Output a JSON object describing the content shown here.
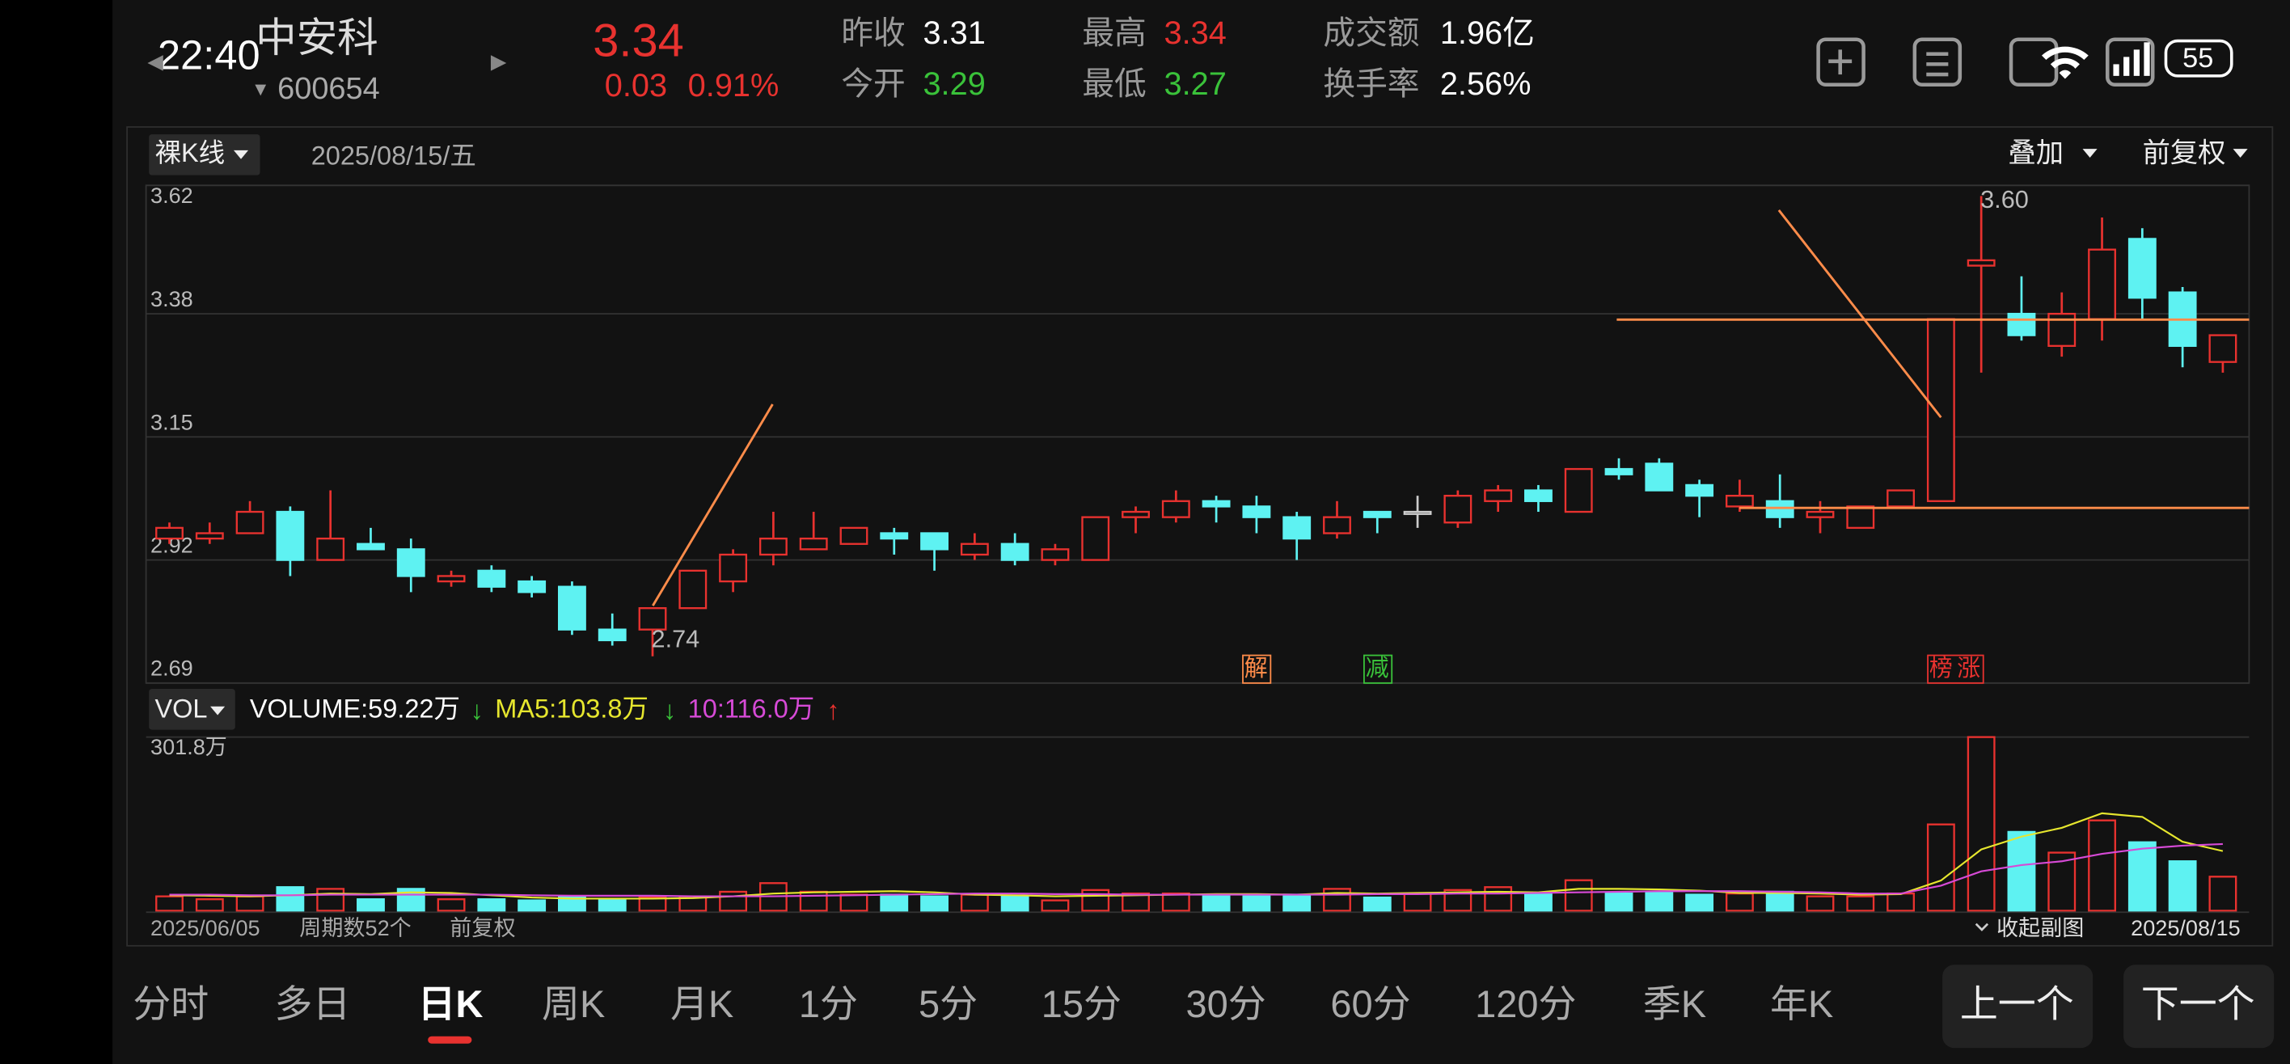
{
  "status_bar": {
    "time": "22:40",
    "battery": "55"
  },
  "header": {
    "name": "中安科",
    "code": "600654",
    "price": "3.34",
    "change": "0.03",
    "change_pct": "0.91%",
    "stats": [
      {
        "label": "昨收",
        "value": "3.31"
      },
      {
        "label": "今开",
        "value": "3.29"
      },
      {
        "label": "最高",
        "value": "3.34"
      },
      {
        "label": "最低",
        "value": "3.27"
      },
      {
        "label": "成交额",
        "value": "1.96亿"
      },
      {
        "label": "换手率",
        "value": "2.56%"
      }
    ]
  },
  "chart_toolbar": {
    "mode": "裸K线",
    "date": "2025/08/15/五",
    "overlay": "叠加",
    "adjust": "前复权"
  },
  "chart_data": [
    {
      "type": "candlestick",
      "open": [
        2.96,
        2.96,
        2.97,
        3.01,
        2.92,
        2.95,
        2.94,
        2.88,
        2.9,
        2.88,
        2.87,
        2.79,
        2.79,
        2.83,
        2.88,
        2.93,
        2.94,
        2.95,
        2.97,
        2.97,
        2.93,
        2.95,
        2.92,
        2.92,
        3.0,
        3.0,
        3.03,
        3.02,
        3.0,
        2.97,
        3.01,
        3.01,
        2.99,
        3.03,
        3.05,
        3.01,
        3.09,
        3.1,
        3.06,
        3.02,
        3.03,
        3.0,
        2.98,
        3.02,
        3.03,
        3.47,
        3.38,
        3.32,
        3.37,
        3.52,
        3.42,
        3.29
      ],
      "high": [
        2.99,
        2.99,
        3.03,
        3.02,
        3.05,
        2.98,
        2.96,
        2.9,
        2.91,
        2.89,
        2.88,
        2.82,
        2.83,
        2.9,
        2.94,
        3.01,
        3.01,
        2.98,
        2.98,
        2.97,
        2.97,
        2.97,
        2.95,
        3.0,
        3.02,
        3.05,
        3.04,
        3.04,
        3.01,
        3.03,
        3.01,
        3.04,
        3.05,
        3.06,
        3.06,
        3.09,
        3.11,
        3.11,
        3.07,
        3.07,
        3.08,
        3.03,
        3.02,
        3.05,
        3.37,
        3.6,
        3.45,
        3.42,
        3.56,
        3.54,
        3.43,
        3.34
      ],
      "low": [
        2.95,
        2.95,
        2.97,
        2.89,
        2.92,
        2.94,
        2.86,
        2.87,
        2.86,
        2.85,
        2.78,
        2.76,
        2.74,
        2.83,
        2.86,
        2.91,
        2.94,
        2.95,
        2.93,
        2.9,
        2.92,
        2.91,
        2.91,
        2.92,
        2.97,
        2.99,
        2.99,
        2.97,
        2.92,
        2.96,
        2.97,
        2.98,
        2.98,
        3.01,
        3.01,
        3.01,
        3.07,
        3.05,
        3.0,
        3.01,
        2.98,
        2.97,
        2.98,
        3.02,
        3.03,
        3.27,
        3.33,
        3.3,
        3.33,
        3.37,
        3.28,
        3.27
      ],
      "close": [
        2.98,
        2.97,
        3.01,
        2.92,
        2.96,
        2.94,
        2.89,
        2.89,
        2.87,
        2.86,
        2.79,
        2.77,
        2.83,
        2.9,
        2.93,
        2.96,
        2.96,
        2.98,
        2.96,
        2.94,
        2.95,
        2.92,
        2.94,
        3.0,
        3.01,
        3.03,
        3.02,
        3.0,
        2.96,
        3.0,
        3.0,
        3.01,
        3.04,
        3.05,
        3.03,
        3.09,
        3.08,
        3.05,
        3.04,
        3.04,
        3.0,
        3.01,
        3.02,
        3.05,
        3.37,
        3.48,
        3.34,
        3.38,
        3.5,
        3.41,
        3.32,
        3.34
      ],
      "ylim": [
        2.69,
        3.62
      ],
      "yticks": [
        2.69,
        2.92,
        3.15,
        3.38,
        3.62
      ],
      "grid": true,
      "up_color": "#e8322f",
      "down_color": "#5ef2f2",
      "flat_color": "#cccccc",
      "annotations": [
        "3.60",
        "2.74"
      ],
      "markers": [
        "解",
        "减",
        "榜",
        "涨"
      ]
    },
    {
      "type": "bar",
      "values": [
        25,
        20,
        25,
        41,
        38,
        20,
        38,
        20,
        20,
        18,
        25,
        20,
        23,
        25,
        33,
        48,
        33,
        28,
        28,
        25,
        28,
        25,
        18,
        36,
        30,
        30,
        28,
        28,
        28,
        38,
        23,
        30,
        36,
        41,
        30,
        53,
        30,
        33,
        28,
        30,
        33,
        25,
        25,
        30,
        150,
        301.8,
        137,
        101,
        157,
        119,
        86,
        59.22
      ],
      "ylim": [
        0,
        301.8
      ],
      "yticks": [
        {
          "value": 301.8,
          "label": "301.8万"
        }
      ],
      "grid": true,
      "series": [
        {
          "color": "#e6e62e",
          "values": [
            27,
            26,
            25,
            27,
            30,
            29,
            32,
            31,
            27,
            23,
            21,
            21,
            21,
            22,
            25,
            30,
            32,
            33,
            34,
            32,
            28,
            27,
            25,
            26,
            27,
            28,
            29,
            29,
            28,
            31,
            30,
            31,
            32,
            33,
            32,
            38,
            38,
            37,
            35,
            31,
            31,
            30,
            28,
            29,
            52.6,
            106.4,
            128.8,
            144,
            169.4,
            163.2,
            120,
            103.8
          ]
        },
        {
          "color": "#d64ad6",
          "values": [
            28,
            28,
            27,
            27,
            28,
            28,
            28,
            28,
            28,
            27,
            26,
            26,
            26,
            25,
            25,
            25,
            26,
            27,
            28,
            29,
            30,
            30,
            29,
            29,
            28,
            28,
            28,
            28,
            28,
            28,
            29,
            29,
            30,
            30,
            31,
            32,
            33,
            34,
            34,
            34,
            33,
            32,
            30,
            30,
            43.7,
            68.6,
            79.3,
            86.1,
            99,
            107.9,
            113.2,
            116
          ]
        }
      ],
      "legend": {
        "indicator": "VOL",
        "volume": "VOLUME:59.22万",
        "ma5": "MA5:103.8万",
        "ma10": "10:116.0万",
        "arrows": [
          "↓",
          "↓",
          "↑"
        ]
      }
    }
  ],
  "footer": {
    "start": "2025/06/05",
    "periods": "周期数52个",
    "adjust": "前复权",
    "collapse": "收起副图",
    "end": "2025/08/15"
  },
  "tabs": [
    "分时",
    "多日",
    "日K",
    "周K",
    "月K",
    "1分",
    "5分",
    "15分",
    "30分",
    "60分",
    "120分",
    "季K",
    "年K"
  ],
  "buttons": [
    "上一个",
    "下一个"
  ]
}
